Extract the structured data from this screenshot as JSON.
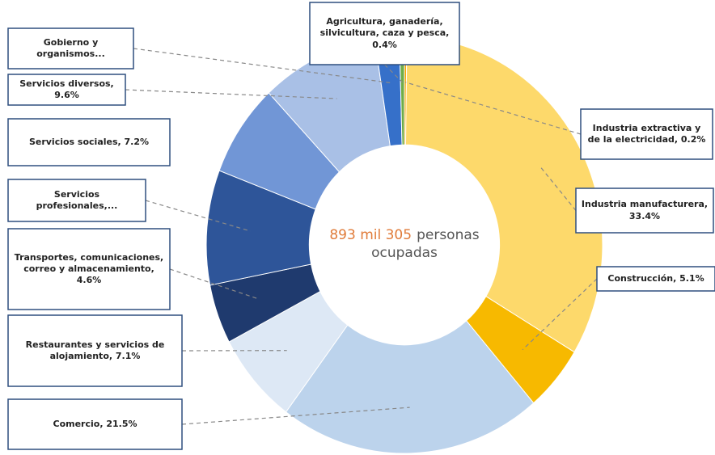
{
  "chart_data": {
    "type": "donut",
    "categories": [
      "Industria extractiva y de la electricidad, 0.2%",
      "Industria manufacturera, 33.4%",
      "Construcción, 5.1%",
      "Comercio, 21.5%",
      "Restaurantes y servicios de alojamiento, 7.1%",
      "Transportes, comunicaciones, correo y almacenamiento, 4.6%",
      "Servicios profesionales,...",
      "Servicios sociales, 7.2%",
      "Servicios diversos, 9.6%",
      "Gobierno y organismos...",
      "Agricultura, ganadería, silvicultura, caza y pesca, 0.4%"
    ],
    "values": [
      0.2,
      33.4,
      5.1,
      21.5,
      7.1,
      4.6,
      8.9,
      7.2,
      9.6,
      2.0,
      0.4
    ],
    "colors": [
      "#f4a300",
      "#fdd96b",
      "#f7b900",
      "#bcd3ec",
      "#dde8f5",
      "#1f3a6e",
      "#2e5599",
      "#7196d6",
      "#a9c0e6",
      "#3670c9",
      "#70ad47"
    ],
    "center_text": [
      "893 mil 305",
      "personas",
      "ocupadas"
    ]
  }
}
